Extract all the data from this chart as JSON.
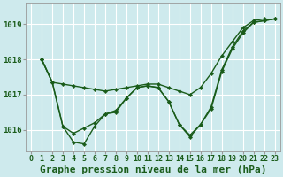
{
  "title": "Graphe pression niveau de la mer (hPa)",
  "bg_color": "#ceeaed",
  "grid_color": "#ffffff",
  "line_color": "#1a5c1a",
  "xlim": [
    -0.5,
    23.5
  ],
  "ylim": [
    1015.4,
    1019.6
  ],
  "yticks": [
    1016,
    1017,
    1018,
    1019
  ],
  "xticks": [
    0,
    1,
    2,
    3,
    4,
    5,
    6,
    7,
    8,
    9,
    10,
    11,
    12,
    13,
    14,
    15,
    16,
    17,
    18,
    19,
    20,
    21,
    22,
    23
  ],
  "s1_x": [
    1,
    2,
    3,
    4,
    5,
    6,
    7,
    8,
    9,
    10,
    11,
    12,
    13,
    14,
    15,
    16,
    17,
    18,
    19,
    20,
    21,
    22
  ],
  "s1_y": [
    1018.0,
    1017.35,
    1017.3,
    1017.25,
    1017.2,
    1017.15,
    1017.1,
    1017.15,
    1017.2,
    1017.25,
    1017.3,
    1017.3,
    1017.2,
    1017.1,
    1017.0,
    1017.2,
    1017.6,
    1018.1,
    1018.5,
    1018.9,
    1019.1,
    1019.15
  ],
  "s2_x": [
    1,
    2,
    3,
    4,
    5,
    6,
    7,
    8,
    9,
    10,
    11,
    12,
    13,
    14,
    15,
    16,
    17,
    18,
    19,
    20,
    21,
    22,
    23
  ],
  "s2_y": [
    1018.0,
    1017.35,
    1016.1,
    1015.9,
    1016.05,
    1016.2,
    1016.45,
    1016.5,
    1016.9,
    1017.2,
    1017.25,
    1017.2,
    1016.8,
    1016.15,
    1015.85,
    1016.15,
    1016.65,
    1017.7,
    1018.35,
    1018.8,
    1019.05,
    1019.1,
    1019.15
  ],
  "s3_x": [
    1,
    2,
    3,
    4,
    5,
    6,
    7,
    8,
    9,
    10,
    11,
    12,
    13,
    14,
    15,
    16,
    17,
    18,
    19,
    20,
    21,
    22,
    23
  ],
  "s3_y": [
    1018.0,
    1017.35,
    1016.1,
    1015.65,
    1015.6,
    1016.1,
    1016.45,
    1016.55,
    1016.9,
    1017.2,
    1017.25,
    1017.2,
    1016.8,
    1016.15,
    1015.8,
    1016.15,
    1016.6,
    1017.65,
    1018.3,
    1018.75,
    1019.05,
    1019.1,
    1019.15
  ],
  "title_fontsize": 8,
  "tick_fontsize": 6
}
